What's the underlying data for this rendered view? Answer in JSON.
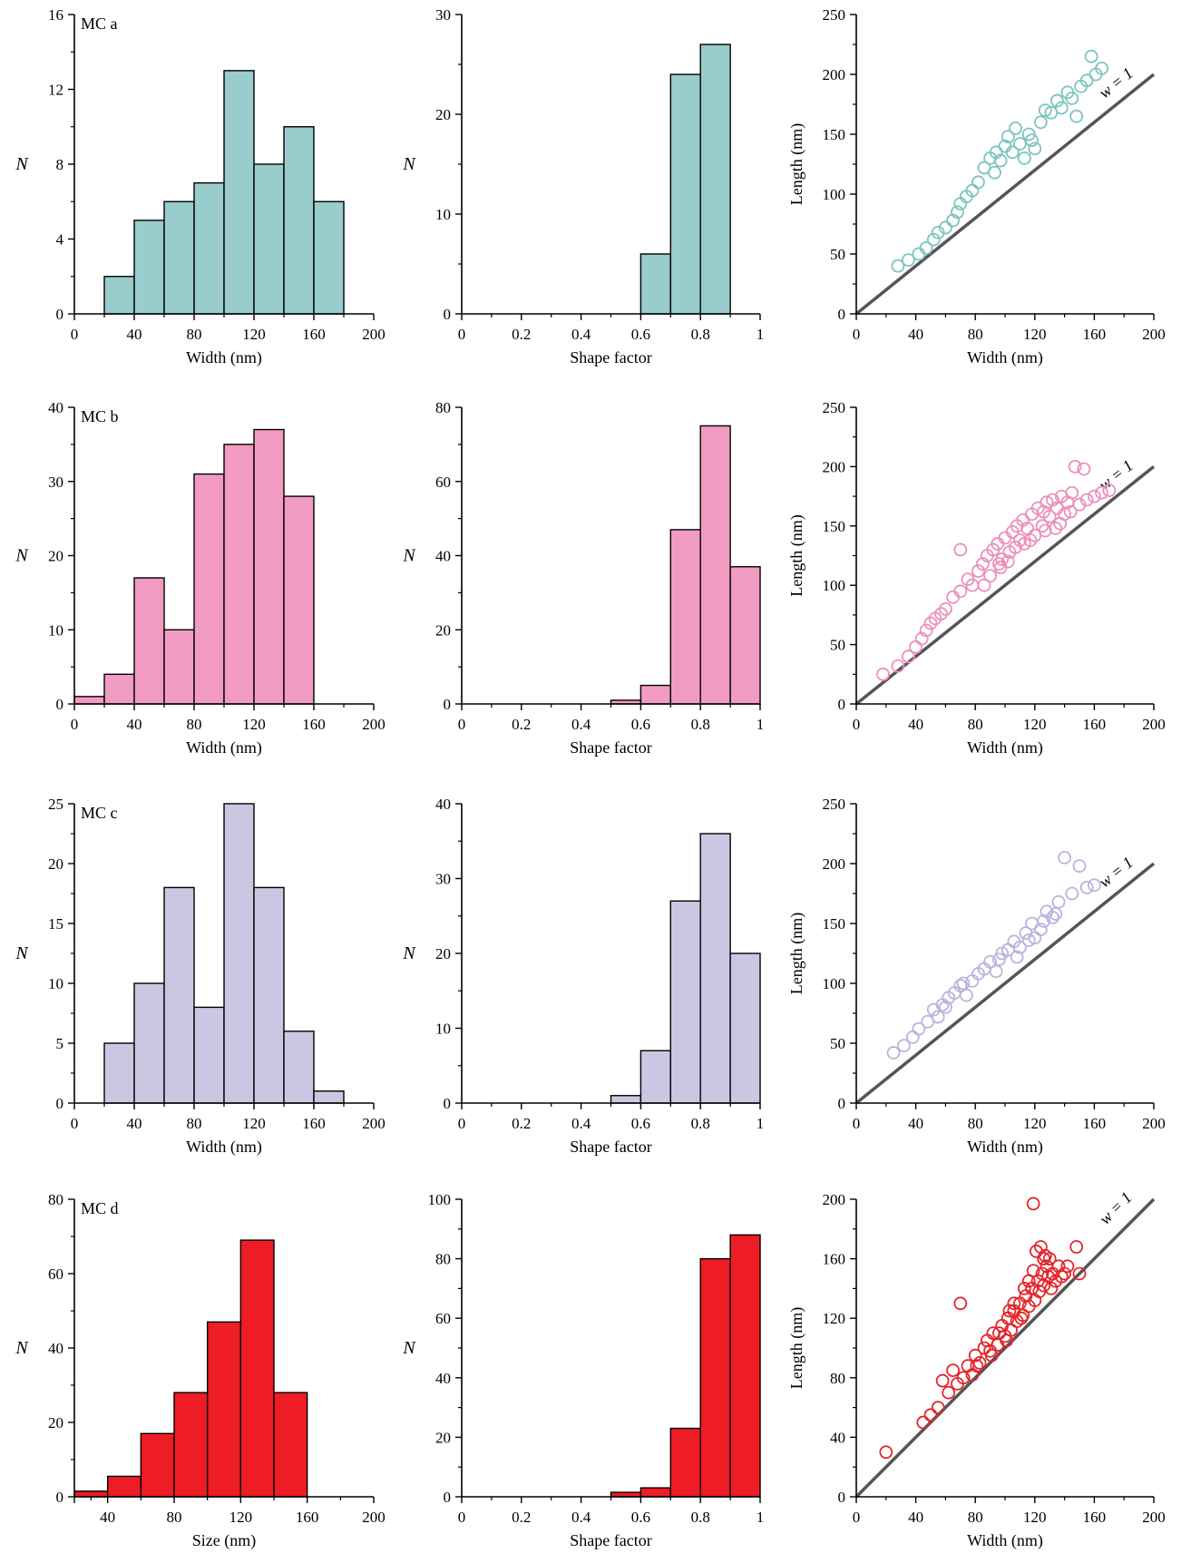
{
  "colors": {
    "a": "#99cccc",
    "b": "#f29bc2",
    "c": "#cbc7e3",
    "d": "#ee1c24",
    "a_point": "#7cc4c0",
    "b_point": "#ec8fbd",
    "c_point": "#b8b4de",
    "d_point": "#e3262b",
    "reference_line": "#555555"
  },
  "chart_data": [
    {
      "type": "bar",
      "panel_label": "MC a",
      "xlabel": "Width (nm)",
      "ylabel": "N",
      "xlim": [
        0,
        200
      ],
      "ylim": [
        0,
        16
      ],
      "xticks": [
        0,
        40,
        80,
        120,
        160,
        200
      ],
      "yticks": [
        0,
        4,
        8,
        12,
        16
      ],
      "bin_width": 20,
      "bins": [
        20,
        40,
        60,
        80,
        100,
        120,
        140,
        160
      ],
      "values": [
        2,
        5,
        6,
        7,
        13,
        8,
        10,
        6
      ],
      "color": "#99cccc"
    },
    {
      "type": "bar",
      "xlabel": "Shape factor",
      "ylabel": "N",
      "xlim": [
        0,
        1
      ],
      "ylim": [
        0,
        30
      ],
      "xticks": [
        "0",
        "0.2",
        "0.4",
        "0.6",
        "0.8",
        "1"
      ],
      "yticks": [
        0,
        10,
        20,
        30
      ],
      "bin_width": 0.1,
      "bins": [
        0.6,
        0.7,
        0.8
      ],
      "values": [
        6,
        24,
        27
      ],
      "color": "#99cccc"
    },
    {
      "type": "scatter",
      "xlabel": "Width (nm)",
      "ylabel": "Length (nm)",
      "xlim": [
        0,
        200
      ],
      "ylim": [
        0,
        250
      ],
      "xticks": [
        0,
        40,
        80,
        120,
        160,
        200
      ],
      "yticks": [
        0,
        50,
        100,
        150,
        200,
        250
      ],
      "reference_label": "w = 1",
      "color": "#7cc4c0",
      "points": [
        [
          28,
          40
        ],
        [
          35,
          45
        ],
        [
          42,
          50
        ],
        [
          47,
          55
        ],
        [
          52,
          62
        ],
        [
          55,
          68
        ],
        [
          60,
          72
        ],
        [
          65,
          78
        ],
        [
          68,
          85
        ],
        [
          70,
          92
        ],
        [
          74,
          98
        ],
        [
          78,
          103
        ],
        [
          82,
          110
        ],
        [
          86,
          122
        ],
        [
          90,
          130
        ],
        [
          94,
          135
        ],
        [
          97,
          128
        ],
        [
          100,
          140
        ],
        [
          102,
          148
        ],
        [
          105,
          135
        ],
        [
          107,
          155
        ],
        [
          110,
          142
        ],
        [
          113,
          130
        ],
        [
          116,
          150
        ],
        [
          120,
          138
        ],
        [
          124,
          160
        ],
        [
          127,
          170
        ],
        [
          131,
          168
        ],
        [
          135,
          178
        ],
        [
          138,
          172
        ],
        [
          142,
          185
        ],
        [
          145,
          180
        ],
        [
          148,
          165
        ],
        [
          151,
          190
        ],
        [
          155,
          195
        ],
        [
          158,
          215
        ],
        [
          161,
          200
        ],
        [
          165,
          205
        ],
        [
          93,
          118
        ],
        [
          118,
          145
        ]
      ]
    },
    {
      "type": "bar",
      "panel_label": "MC b",
      "xlabel": "Width (nm)",
      "ylabel": "N",
      "xlim": [
        0,
        200
      ],
      "ylim": [
        0,
        40
      ],
      "xticks": [
        0,
        40,
        80,
        120,
        160,
        200
      ],
      "yticks": [
        0,
        10,
        20,
        30,
        40
      ],
      "bin_width": 20,
      "bins": [
        0,
        20,
        40,
        60,
        80,
        100,
        120,
        140
      ],
      "values": [
        1,
        4,
        17,
        10,
        31,
        35,
        37,
        28
      ],
      "color": "#f29bc2"
    },
    {
      "type": "bar",
      "xlabel": "Shape factor",
      "ylabel": "N",
      "xlim": [
        0,
        1
      ],
      "ylim": [
        0,
        80
      ],
      "xticks": [
        "0",
        "0.2",
        "0.4",
        "0.6",
        "0.8",
        "1"
      ],
      "yticks": [
        0,
        20,
        40,
        60,
        80
      ],
      "bin_width": 0.1,
      "bins": [
        0.5,
        0.6,
        0.7,
        0.8,
        0.9
      ],
      "values": [
        1,
        5,
        47,
        75,
        37
      ],
      "color": "#f29bc2"
    },
    {
      "type": "scatter",
      "xlabel": "Width (nm)",
      "ylabel": "Length (nm)",
      "xlim": [
        0,
        200
      ],
      "ylim": [
        0,
        250
      ],
      "xticks": [
        0,
        40,
        80,
        120,
        160,
        200
      ],
      "yticks": [
        0,
        50,
        100,
        150,
        200,
        250
      ],
      "reference_label": "w = 1",
      "color": "#ec8fbd",
      "points": [
        [
          18,
          25
        ],
        [
          28,
          32
        ],
        [
          35,
          40
        ],
        [
          40,
          48
        ],
        [
          44,
          55
        ],
        [
          47,
          62
        ],
        [
          50,
          68
        ],
        [
          53,
          72
        ],
        [
          57,
          76
        ],
        [
          60,
          80
        ],
        [
          65,
          90
        ],
        [
          70,
          95
        ],
        [
          70,
          130
        ],
        [
          75,
          105
        ],
        [
          78,
          100
        ],
        [
          82,
          112
        ],
        [
          85,
          118
        ],
        [
          88,
          125
        ],
        [
          90,
          108
        ],
        [
          92,
          130
        ],
        [
          95,
          135
        ],
        [
          98,
          122
        ],
        [
          100,
          140
        ],
        [
          103,
          128
        ],
        [
          105,
          145
        ],
        [
          108,
          150
        ],
        [
          110,
          138
        ],
        [
          112,
          155
        ],
        [
          115,
          148
        ],
        [
          118,
          160
        ],
        [
          120,
          142
        ],
        [
          122,
          165
        ],
        [
          125,
          150
        ],
        [
          128,
          170
        ],
        [
          130,
          158
        ],
        [
          132,
          172
        ],
        [
          135,
          165
        ],
        [
          138,
          175
        ],
        [
          140,
          160
        ],
        [
          142,
          170
        ],
        [
          145,
          178
        ],
        [
          147,
          200
        ],
        [
          150,
          168
        ],
        [
          153,
          198
        ],
        [
          155,
          172
        ],
        [
          160,
          175
        ],
        [
          165,
          178
        ],
        [
          170,
          180
        ],
        [
          97,
          115
        ],
        [
          107,
          132
        ],
        [
          117,
          138
        ],
        [
          127,
          146
        ],
        [
          137,
          152
        ],
        [
          86,
          100
        ],
        [
          96,
          118
        ],
        [
          126,
          162
        ],
        [
          134,
          148
        ],
        [
          144,
          162
        ],
        [
          102,
          120
        ],
        [
          113,
          135
        ]
      ]
    },
    {
      "type": "bar",
      "panel_label": "MC c",
      "xlabel": "Width (nm)",
      "ylabel": "N",
      "xlim": [
        0,
        200
      ],
      "ylim": [
        0,
        25
      ],
      "xticks": [
        0,
        40,
        80,
        120,
        160,
        200
      ],
      "yticks": [
        0,
        5,
        10,
        15,
        20,
        25
      ],
      "bin_width": 20,
      "bins": [
        20,
        40,
        60,
        80,
        100,
        120,
        140,
        160
      ],
      "values": [
        5,
        10,
        18,
        8,
        25,
        18,
        6,
        1
      ],
      "color": "#cbc7e3"
    },
    {
      "type": "bar",
      "xlabel": "Shape factor",
      "ylabel": "N",
      "xlim": [
        0,
        1
      ],
      "ylim": [
        0,
        40
      ],
      "xticks": [
        "0",
        "0.2",
        "0.4",
        "0.6",
        "0.8",
        "1"
      ],
      "yticks": [
        0,
        10,
        20,
        30,
        40
      ],
      "bin_width": 0.1,
      "bins": [
        0.5,
        0.6,
        0.7,
        0.8,
        0.9
      ],
      "values": [
        1,
        7,
        27,
        36,
        20
      ],
      "color": "#cbc7e3"
    },
    {
      "type": "scatter",
      "xlabel": "Width (nm)",
      "ylabel": "Length (nm)",
      "xlim": [
        0,
        200
      ],
      "ylim": [
        0,
        250
      ],
      "xticks": [
        0,
        40,
        80,
        120,
        160,
        200
      ],
      "yticks": [
        0,
        50,
        100,
        150,
        200,
        250
      ],
      "reference_label": "w = 1",
      "color": "#b8b4de",
      "points": [
        [
          25,
          42
        ],
        [
          32,
          48
        ],
        [
          38,
          55
        ],
        [
          42,
          62
        ],
        [
          48,
          68
        ],
        [
          52,
          78
        ],
        [
          55,
          72
        ],
        [
          58,
          82
        ],
        [
          62,
          88
        ],
        [
          66,
          92
        ],
        [
          70,
          98
        ],
        [
          74,
          90
        ],
        [
          78,
          102
        ],
        [
          82,
          108
        ],
        [
          86,
          112
        ],
        [
          90,
          118
        ],
        [
          94,
          110
        ],
        [
          98,
          125
        ],
        [
          102,
          128
        ],
        [
          106,
          135
        ],
        [
          110,
          130
        ],
        [
          114,
          142
        ],
        [
          118,
          150
        ],
        [
          120,
          138
        ],
        [
          124,
          145
        ],
        [
          128,
          160
        ],
        [
          132,
          155
        ],
        [
          136,
          168
        ],
        [
          140,
          205
        ],
        [
          145,
          175
        ],
        [
          150,
          198
        ],
        [
          155,
          180
        ],
        [
          160,
          182
        ],
        [
          96,
          120
        ],
        [
          108,
          122
        ],
        [
          116,
          136
        ],
        [
          126,
          152
        ],
        [
          134,
          158
        ],
        [
          72,
          100
        ],
        [
          60,
          80
        ]
      ]
    },
    {
      "type": "bar",
      "panel_label": "MC d",
      "xlabel": "Size (nm)",
      "ylabel": "N",
      "xlim": [
        20,
        200
      ],
      "ylim": [
        0,
        80
      ],
      "xticks": [
        40,
        80,
        120,
        160,
        200
      ],
      "yticks": [
        0,
        20,
        40,
        60,
        80
      ],
      "bin_width": 20,
      "bins": [
        20,
        40,
        60,
        80,
        100,
        120,
        140
      ],
      "values": [
        1.5,
        5.5,
        17,
        28,
        47,
        69,
        28
      ],
      "color": "#ee1c24"
    },
    {
      "type": "bar",
      "xlabel": "Shape factor",
      "ylabel": "N",
      "xlim": [
        0,
        1
      ],
      "ylim": [
        0,
        100
      ],
      "xticks": [
        "0",
        "0.2",
        "0.4",
        "0.6",
        "0.8",
        "1"
      ],
      "yticks": [
        0,
        20,
        40,
        60,
        80,
        100
      ],
      "bin_width": 0.1,
      "bins": [
        0.5,
        0.6,
        0.7,
        0.8,
        0.9
      ],
      "values": [
        1.5,
        3,
        23,
        80,
        88
      ],
      "color": "#ee1c24"
    },
    {
      "type": "scatter",
      "xlabel": "Width (nm)",
      "ylabel": "Length (nm)",
      "xlim": [
        0,
        200
      ],
      "ylim": [
        0,
        200
      ],
      "xticks": [
        0,
        40,
        80,
        120,
        160,
        200
      ],
      "yticks": [
        0,
        40,
        80,
        120,
        160,
        200
      ],
      "reference_label": "w = 1",
      "color": "#e3262b",
      "points": [
        [
          20,
          30
        ],
        [
          45,
          50
        ],
        [
          50,
          55
        ],
        [
          55,
          60
        ],
        [
          58,
          78
        ],
        [
          62,
          70
        ],
        [
          65,
          85
        ],
        [
          70,
          130
        ],
        [
          72,
          80
        ],
        [
          75,
          88
        ],
        [
          78,
          82
        ],
        [
          80,
          95
        ],
        [
          83,
          90
        ],
        [
          86,
          100
        ],
        [
          88,
          105
        ],
        [
          90,
          98
        ],
        [
          92,
          110
        ],
        [
          95,
          102
        ],
        [
          98,
          115
        ],
        [
          100,
          108
        ],
        [
          102,
          120
        ],
        [
          104,
          112
        ],
        [
          106,
          125
        ],
        [
          108,
          118
        ],
        [
          110,
          130
        ],
        [
          112,
          122
        ],
        [
          114,
          135
        ],
        [
          116,
          128
        ],
        [
          118,
          140
        ],
        [
          119,
          197
        ],
        [
          120,
          132
        ],
        [
          122,
          145
        ],
        [
          123,
          138
        ],
        [
          125,
          150
        ],
        [
          126,
          142
        ],
        [
          128,
          155
        ],
        [
          129,
          148
        ],
        [
          130,
          160
        ],
        [
          132,
          150
        ],
        [
          134,
          145
        ],
        [
          136,
          155
        ],
        [
          138,
          148
        ],
        [
          140,
          150
        ],
        [
          142,
          155
        ],
        [
          148,
          168
        ],
        [
          150,
          150
        ],
        [
          121,
          165
        ],
        [
          124,
          168
        ],
        [
          127,
          162
        ],
        [
          96,
          110
        ],
        [
          106,
          130
        ],
        [
          116,
          145
        ],
        [
          126,
          160
        ],
        [
          131,
          140
        ],
        [
          111,
          120
        ],
        [
          101,
          105
        ],
        [
          91,
          95
        ],
        [
          81,
          88
        ],
        [
          68,
          76
        ],
        [
          113,
          140
        ],
        [
          119,
          152
        ],
        [
          103,
          125
        ]
      ]
    }
  ]
}
